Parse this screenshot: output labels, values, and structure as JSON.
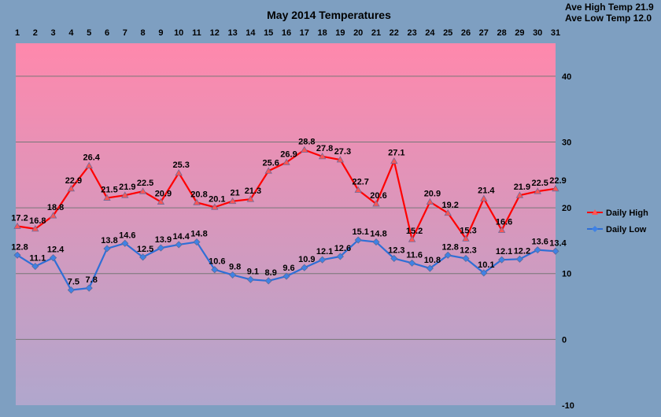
{
  "stats": {
    "ave_high": "Ave High Temp 21.9",
    "ave_low": "Ave Low Temp 12.0"
  },
  "colors": {
    "high": "#ff0000",
    "low": "#2f6fd6",
    "plot_top": "#ff88ac",
    "plot_bottom": "#b0a7cd",
    "background": "#7e9fc1",
    "grid": "#777777"
  },
  "chart_data": {
    "type": "line",
    "title": "May 2014 Temperatures",
    "x": [
      1,
      2,
      3,
      4,
      5,
      6,
      7,
      8,
      9,
      10,
      11,
      12,
      13,
      14,
      15,
      16,
      17,
      18,
      19,
      20,
      21,
      22,
      23,
      24,
      25,
      26,
      27,
      28,
      29,
      30,
      31
    ],
    "x_tick_labels": [
      "1",
      "2",
      "3",
      "4",
      "5",
      "6",
      "7",
      "8",
      "9",
      "10",
      "11",
      "12",
      "13",
      "14",
      "15",
      "16",
      "17",
      "18",
      "19",
      "20",
      "21",
      "22",
      "23",
      "24",
      "25",
      "26",
      "27",
      "28",
      "29",
      "30",
      "31"
    ],
    "ylim": [
      -10,
      45
    ],
    "y_ticks": [
      -10,
      0,
      10,
      20,
      30,
      40
    ],
    "y_tick_labels": [
      "-10",
      "0",
      "10",
      "20",
      "30",
      "40"
    ],
    "grid": true,
    "legend_position": "right",
    "series": [
      {
        "name": "Daily High",
        "color": "#ff0000",
        "values": [
          17.2,
          16.8,
          18.8,
          22.9,
          26.4,
          21.5,
          21.9,
          22.5,
          20.9,
          25.3,
          20.8,
          20.1,
          21,
          21.3,
          25.6,
          26.9,
          28.8,
          27.8,
          27.3,
          22.7,
          20.6,
          27.1,
          15.2,
          20.9,
          19.2,
          15.3,
          21.4,
          16.6,
          21.9,
          22.5,
          22.9
        ],
        "labels": [
          "17.2",
          "16.8",
          "18.8",
          "22.9",
          "26.4",
          "21.5",
          "21.9",
          "22.5",
          "20.9",
          "25.3",
          "20.8",
          "20.1",
          "21",
          "21.3",
          "25.6",
          "26.9",
          "28.8",
          "27.8",
          "27.3",
          "22.7",
          "20.6",
          "27.1",
          "15.2",
          "20.9",
          "19.2",
          "15.3",
          "21.4",
          "16.6",
          "21.9",
          "22.5",
          "22.9"
        ]
      },
      {
        "name": "Daily Low",
        "color": "#2f6fd6",
        "values": [
          12.8,
          11.1,
          12.4,
          7.5,
          7.8,
          13.8,
          14.6,
          12.5,
          13.9,
          14.4,
          14.8,
          10.6,
          9.8,
          9.1,
          8.9,
          9.6,
          10.9,
          12.1,
          12.6,
          15.1,
          14.8,
          12.3,
          11.6,
          10.8,
          12.8,
          12.3,
          10.1,
          12.1,
          12.2,
          13.6,
          13.4
        ],
        "labels": [
          "12.8",
          "11.1",
          "12.4",
          "7.5",
          "7.8",
          "13.8",
          "14.6",
          "12.5",
          "13.9",
          "14.4",
          "14.8",
          "10.6",
          "9.8",
          "9.1",
          "8.9",
          "9.6",
          "10.9",
          "12.1",
          "12.6",
          "15.1",
          "14.8",
          "12.3",
          "11.6",
          "10.8",
          "12.8",
          "12.3",
          "10.1",
          "12.1",
          "12.2",
          "13.6",
          "13.4"
        ]
      }
    ]
  }
}
